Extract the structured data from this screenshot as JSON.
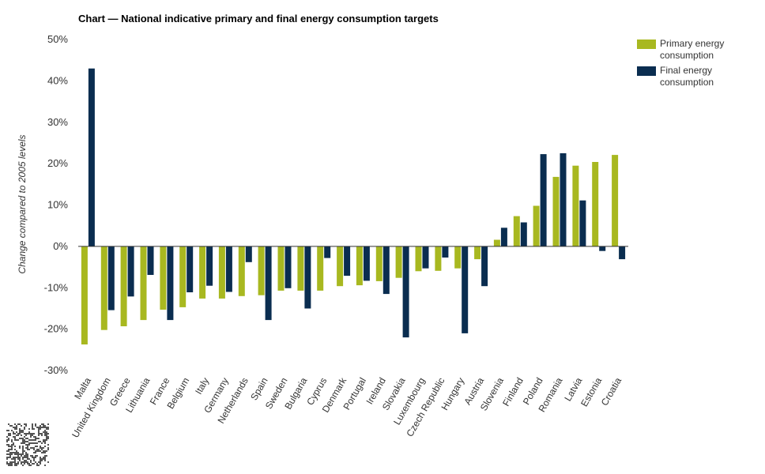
{
  "chart_data": {
    "type": "bar",
    "title": "Chart — National indicative primary and final energy consumption targets",
    "ylabel": "Change compared to 2005 levels",
    "xlabel": "",
    "ylim": [
      -30,
      50
    ],
    "ytick_values": [
      -30,
      -20,
      -10,
      0,
      10,
      20,
      30,
      40,
      50
    ],
    "ytick_labels": [
      "-30%",
      "-20%",
      "-10%",
      "0%",
      "10%",
      "20%",
      "30%",
      "40%",
      "50%"
    ],
    "grid": false,
    "legend_position": "top-right",
    "categories": [
      "Malta",
      "United Kingdom",
      "Greece",
      "Lithuania",
      "France",
      "Belgium",
      "Italy",
      "Germany",
      "Netherlands",
      "Spain",
      "Sweden",
      "Bulgaria",
      "Cyprus",
      "Denmark",
      "Portugal",
      "Ireland",
      "Slovakia",
      "Luxembourg",
      "Czech Republic",
      "Hungary",
      "Austria",
      "Slovenia",
      "Finland",
      "Poland",
      "Romania",
      "Latvia",
      "Estonia",
      "Croatia"
    ],
    "series": [
      {
        "name": "Primary energy consumption",
        "color": "#a8b820",
        "values": [
          -23.7,
          -20.2,
          -19.3,
          -17.8,
          -15.3,
          -14.7,
          -12.6,
          -12.6,
          -12.0,
          -11.8,
          -10.7,
          -10.7,
          -10.7,
          -9.6,
          -9.4,
          -8.4,
          -7.6,
          -6.0,
          -5.9,
          -5.3,
          -3.1,
          1.6,
          7.3,
          9.8,
          16.8,
          19.5,
          20.4,
          22.1
        ]
      },
      {
        "name": "Final energy consumption",
        "color": "#0a2d50",
        "values": [
          43.0,
          -15.4,
          -12.1,
          -6.9,
          -17.8,
          -11.1,
          -9.5,
          -11.0,
          -3.8,
          -17.8,
          -10.1,
          -15.0,
          -2.8,
          -7.1,
          -8.3,
          -11.5,
          -22.0,
          -5.3,
          -2.7,
          -21.0,
          -9.6,
          4.5,
          5.8,
          22.3,
          22.5,
          11.1,
          -1.1,
          -3.1
        ]
      }
    ]
  }
}
